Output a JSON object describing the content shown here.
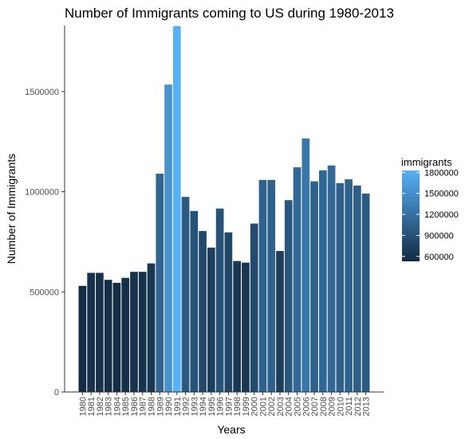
{
  "chart_data": {
    "type": "bar",
    "title": "Number of Immigrants coming to US during 1980-2013",
    "xlabel": "Years",
    "ylabel": "Number of Immigrants",
    "categories": [
      "1980",
      "1981",
      "1982",
      "1983",
      "1984",
      "1985",
      "1986",
      "1987",
      "1988",
      "1989",
      "1990",
      "1991",
      "1992",
      "1993",
      "1994",
      "1995",
      "1996",
      "1997",
      "1998",
      "1999",
      "2000",
      "2001",
      "2002",
      "2003",
      "2004",
      "2005",
      "2006",
      "2007",
      "2008",
      "2009",
      "2010",
      "2011",
      "2012",
      "2013"
    ],
    "series": [
      {
        "values": [
          530000,
          595000,
          595000,
          560000,
          545000,
          570000,
          600000,
          600000,
          642000,
          1090000,
          1535000,
          1827000,
          974000,
          904000,
          804000,
          721000,
          916000,
          797000,
          654000,
          646000,
          841000,
          1059000,
          1059000,
          704000,
          958000,
          1122000,
          1266000,
          1052000,
          1107000,
          1131000,
          1043000,
          1062000,
          1031000,
          991000
        ]
      }
    ],
    "ylim": [
      0,
      1830000
    ],
    "yticks": [
      0,
      500000,
      1000000,
      1500000
    ],
    "grid": false,
    "legend": {
      "title": "immigrants",
      "position": "right",
      "labels": [
        "1800000",
        "1500000",
        "1200000",
        "900000",
        "600000"
      ],
      "label_values": [
        1800000,
        1500000,
        1200000,
        900000,
        600000
      ],
      "range": [
        530000,
        1827000
      ],
      "low_color": "#132B43",
      "high_color": "#56B1F7"
    }
  }
}
